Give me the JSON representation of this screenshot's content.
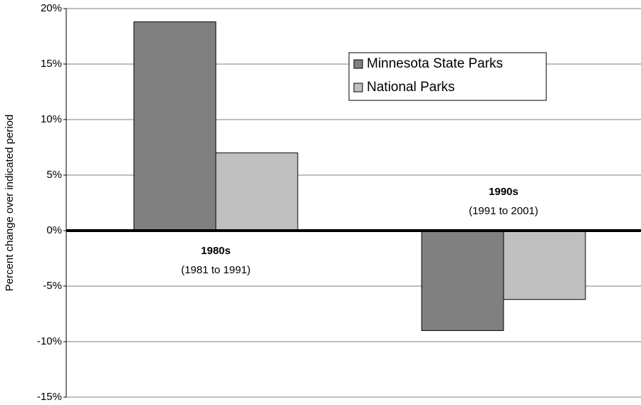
{
  "chart_data": {
    "type": "bar",
    "y_label": "Percent change over indicated period",
    "categories": [
      "1980s",
      "1990s"
    ],
    "category_periods": [
      "(1981 to 1991)",
      "(1991 to 2001)"
    ],
    "series": [
      {
        "name": "Minnesota State Parks",
        "color": "#808080",
        "values": [
          18.8,
          -9.0
        ]
      },
      {
        "name": "National Parks",
        "color": "#c0c0c0",
        "values": [
          7.0,
          -6.2
        ]
      }
    ],
    "ylim": [
      -15,
      20
    ],
    "yticks": [
      {
        "value": -15,
        "label": "-15%"
      },
      {
        "value": -10,
        "label": "-10%"
      },
      {
        "value": -5,
        "label": "-5%"
      },
      {
        "value": 0,
        "label": "0%"
      },
      {
        "value": 5,
        "label": "5%"
      },
      {
        "value": 10,
        "label": "10%"
      },
      {
        "value": 15,
        "label": "15%"
      },
      {
        "value": 20,
        "label": "20%"
      }
    ],
    "grid": true,
    "legend": "upper right"
  }
}
